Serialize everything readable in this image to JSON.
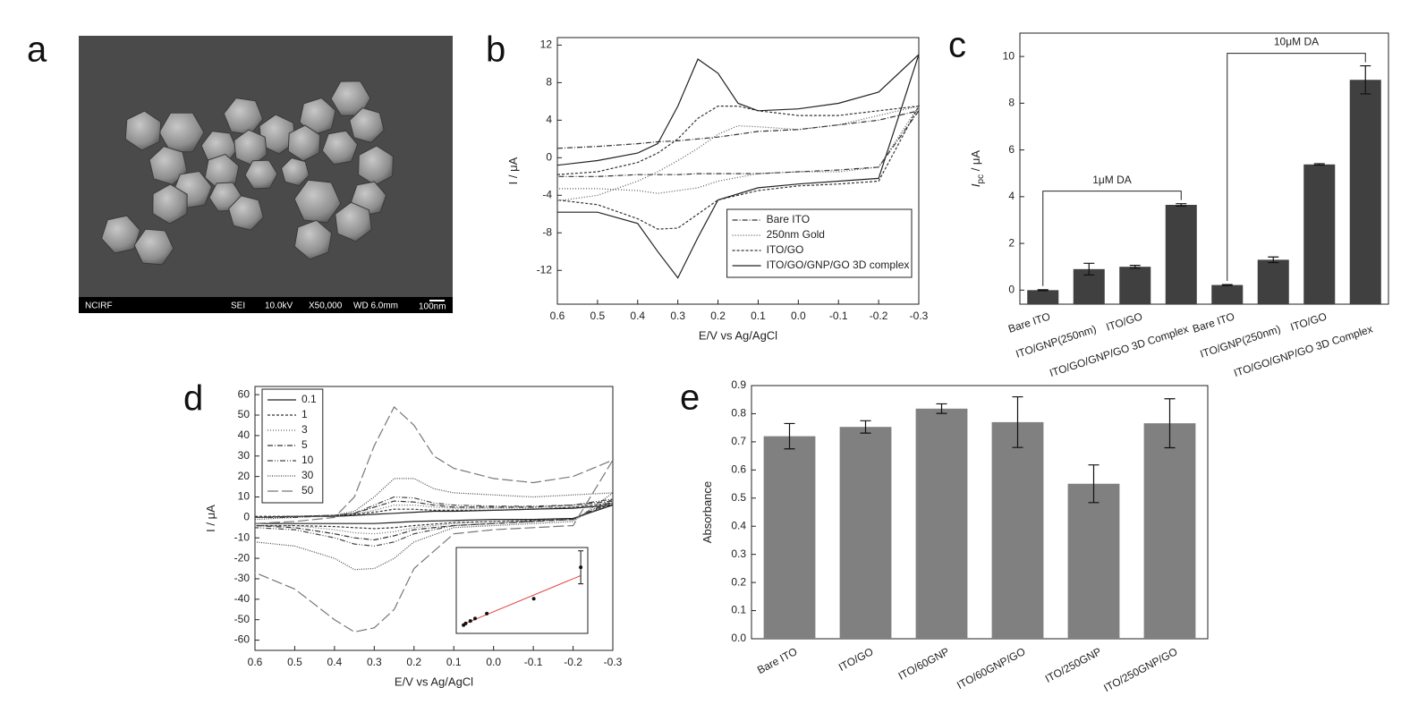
{
  "sem_image": {
    "panel": "a",
    "info": [
      "NCIRF",
      "SEI",
      "10.0kV",
      "X50,000",
      "WD 6.0mm"
    ],
    "scale_bar": "100nm"
  },
  "chart_data": [
    {
      "type": "line",
      "panel": "b",
      "xlabel": "E/V vs Ag/AgCl",
      "ylabel": "I / μA",
      "xlim": [
        0.6,
        -0.3
      ],
      "ylim": [
        -15.6,
        12.8
      ],
      "xticks": [
        0.6,
        0.5,
        0.4,
        0.3,
        0.2,
        0.1,
        {
          "value": 0,
          "label": "0.0"
        },
        -0.1,
        -0.2,
        -0.3
      ],
      "yticks": [
        -12,
        -8,
        -4,
        0,
        4,
        8,
        12
      ],
      "legend": "lower right",
      "x": [
        0.6,
        0.5,
        0.4,
        0.35,
        0.3,
        0.25,
        0.2,
        0.15,
        0.1,
        0,
        -0.1,
        -0.2,
        -0.3,
        -0.2,
        -0.1,
        0,
        0.1,
        0.2,
        0.25,
        0.3,
        0.35,
        0.4,
        0.5,
        0.6
      ],
      "series": [
        {
          "name": "Bare ITO",
          "color": "#333333",
          "dash": "6 2 1 2",
          "values": [
            1,
            1.2,
            1.5,
            1.7,
            1.8,
            2,
            2.2,
            2.5,
            2.8,
            3,
            3.5,
            4,
            5,
            -1,
            -1.3,
            -1.5,
            -1.7,
            -1.7,
            -1.7,
            -1.8,
            -1.8,
            -1.8,
            -2,
            -2
          ]
        },
        {
          "name": "250nm Gold",
          "color": "#555555",
          "dash": "1 2",
          "values": [
            -4.6,
            -4,
            -2.5,
            -1.5,
            -0.3,
            1,
            2.5,
            3.4,
            3.3,
            3,
            3.5,
            4.5,
            5.5,
            -1,
            -1.5,
            -1.5,
            -1.7,
            -2.5,
            -3.2,
            -3.5,
            -3.8,
            -3.5,
            -3.3,
            -3.3
          ]
        },
        {
          "name": "ITO/GO",
          "color": "#333333",
          "dash": "3 2",
          "values": [
            -1.8,
            -1.5,
            -0.5,
            0.5,
            2,
            4.2,
            5.5,
            5.5,
            5,
            4.5,
            4.5,
            5,
            5.5,
            -2.5,
            -2.8,
            -3,
            -3.5,
            -4.5,
            -6,
            -7.5,
            -7.6,
            -6.5,
            -5,
            -4.5
          ]
        },
        {
          "name": "ITO/GO/GNP/GO 3D complex",
          "color": "#222222",
          "values": [
            -0.8,
            -0.3,
            0.5,
            1.5,
            5.5,
            10.5,
            9,
            5.8,
            5,
            5.2,
            5.8,
            7,
            11,
            -2.2,
            -2.5,
            -2.8,
            -3.2,
            -4.5,
            -8.5,
            -12.8,
            -10,
            -7,
            -5.8,
            -5.8
          ]
        }
      ]
    },
    {
      "type": "bar",
      "panel": "c",
      "ylabel": "I",
      "ylabel_subscript": "pc",
      "ylabel_unit": " / μA",
      "ylim": [
        -0.6,
        11
      ],
      "yticks": [
        0,
        2,
        4,
        6,
        8,
        10
      ],
      "color": "#404040",
      "annotations": [
        "1μM DA",
        "10μM DA"
      ],
      "categories": [
        "Bare ITO",
        "ITO/GNP(250nm)",
        "ITO/GO",
        "ITO/GO/GNP/GO 3D Complex",
        "Bare ITO",
        "ITO/GNP(250nm)",
        "ITO/GO",
        "ITO/GO/GNP/GO 3D Complex"
      ],
      "values": [
        0,
        0.9,
        1.0,
        3.65,
        0.22,
        1.3,
        5.38,
        9.0
      ],
      "errors": [
        0.02,
        0.25,
        0.06,
        0.05,
        0.02,
        0.12,
        0.03,
        0.6
      ]
    },
    {
      "type": "line",
      "panel": "d",
      "xlabel": "E/V vs Ag/AgCl",
      "ylabel": "I / μA",
      "xlim": [
        0.6,
        -0.3
      ],
      "ylim": [
        -65,
        64
      ],
      "xticks": [
        0.6,
        0.5,
        0.4,
        0.3,
        0.2,
        0.1,
        {
          "value": 0,
          "label": "0.0"
        },
        -0.1,
        -0.2,
        -0.3
      ],
      "yticks": [
        -60,
        -50,
        -40,
        -30,
        -20,
        -10,
        0,
        10,
        20,
        30,
        40,
        50,
        60
      ],
      "legend": "upper left",
      "x": [
        0.6,
        0.5,
        0.4,
        0.35,
        0.3,
        0.25,
        0.2,
        0.15,
        0.1,
        0,
        -0.1,
        -0.2,
        -0.3,
        -0.2,
        -0.1,
        0,
        0.1,
        0.2,
        0.25,
        0.3,
        0.35,
        0.4,
        0.5,
        0.6
      ],
      "series": [
        {
          "name": "0.1",
          "color": "#222222",
          "values": [
            0,
            0.5,
            0.5,
            1,
            1.5,
            2,
            2.5,
            3,
            3,
            3.5,
            4,
            4.5,
            6,
            -0.5,
            -1,
            -1,
            -1.5,
            -2,
            -2.5,
            -3,
            -3,
            -3,
            -3,
            -3
          ]
        },
        {
          "name": "1",
          "color": "#333333",
          "dash": "3 2",
          "values": [
            0.5,
            0.5,
            1,
            1.5,
            2.5,
            4,
            4,
            3.5,
            3.5,
            3.5,
            4,
            5,
            7,
            -1,
            -1.5,
            -2,
            -2.5,
            -4,
            -5,
            -5.5,
            -5,
            -4.5,
            -4,
            -4
          ]
        },
        {
          "name": "3",
          "color": "#666666",
          "dash": "1 2",
          "values": [
            0,
            0.5,
            1,
            1.5,
            3.5,
            6,
            6,
            5,
            4.5,
            4.5,
            4.5,
            5,
            7,
            -1,
            -1.5,
            -2,
            -3,
            -5,
            -7,
            -8,
            -7.5,
            -6,
            -4,
            -4
          ]
        },
        {
          "name": "5",
          "color": "#333333",
          "dash": "6 2 1 2",
          "values": [
            0,
            0.5,
            1,
            2,
            5,
            8,
            7.5,
            6,
            5,
            5,
            5,
            6,
            8,
            -1,
            -2,
            -3,
            -4,
            -6,
            -9,
            -11,
            -10,
            -8,
            -5,
            -4
          ]
        },
        {
          "name": "10",
          "color": "#444444",
          "dash": "6 2 1 2 1 2",
          "values": [
            0,
            0,
            1,
            2,
            6,
            10,
            9.5,
            7,
            6,
            5.5,
            5.5,
            6,
            9,
            -1,
            -2,
            -3,
            -4,
            -8,
            -12,
            -14,
            -13,
            -10,
            -6,
            -5
          ]
        },
        {
          "name": "30",
          "color": "#444444",
          "dash": "1 1.5",
          "values": [
            -1,
            0,
            1,
            3,
            10,
            19,
            19,
            14,
            12,
            11,
            10,
            11,
            12,
            -2,
            -3,
            -4,
            -5,
            -12,
            -20,
            -25,
            -25.5,
            -20,
            -14,
            -12
          ]
        },
        {
          "name": "50",
          "color": "#777777",
          "dash": "12 4",
          "values": [
            -3,
            -2,
            0,
            10,
            35,
            54,
            45,
            30,
            24,
            19,
            17,
            20,
            28,
            -4,
            -5,
            -6,
            -8,
            -25,
            -45,
            -54,
            -56,
            -50,
            -35,
            -27
          ]
        }
      ]
    },
    {
      "type": "scatter",
      "xlim": [
        -3,
        53
      ],
      "ylim": [
        -4,
        48
      ],
      "x": [
        0.1,
        1,
        3,
        5,
        10,
        30,
        50
      ],
      "values": [
        1,
        2,
        3.5,
        5,
        8,
        17,
        36
      ],
      "errors": [
        null,
        null,
        null,
        null,
        null,
        null,
        10
      ],
      "color": "#111111",
      "fit": {
        "x": [
          0,
          50
        ],
        "values": [
          1.5,
          31
        ],
        "color": "#e04040"
      }
    },
    {
      "type": "bar",
      "panel": "e",
      "ylabel": "Absorbance",
      "ylim": [
        0,
        0.9
      ],
      "yticks": [
        {
          "value": 0,
          "label": "0.0"
        },
        0.1,
        0.2,
        0.3,
        0.4,
        0.5,
        0.6,
        0.7,
        0.8,
        0.9
      ],
      "color": "#808080",
      "categories": [
        "Bare ITO",
        "ITO/GO",
        "ITO/60GNP",
        "ITO/60GNP/GO",
        "ITO/250GNP",
        "ITO/250GNP/GO"
      ],
      "values": [
        0.72,
        0.753,
        0.818,
        0.77,
        0.551,
        0.766
      ],
      "errors": [
        0.045,
        0.022,
        0.017,
        0.09,
        0.067,
        0.087
      ]
    }
  ]
}
